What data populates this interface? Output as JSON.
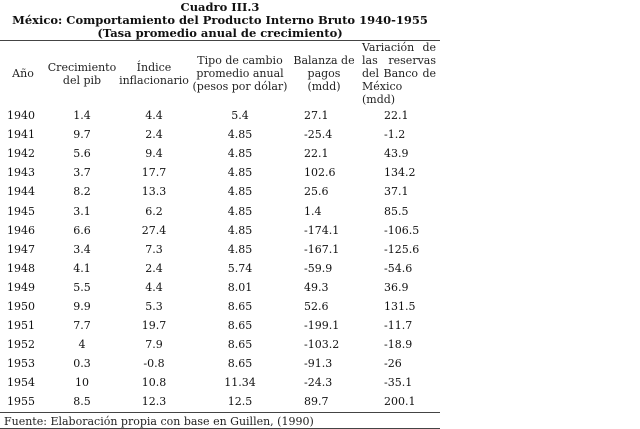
{
  "document": {
    "title_line1": "Cuadro III.3",
    "title_line2": "México: Comportamiento del Producto Interno Bruto 1940-1955",
    "title_line3": "(Tasa promedio anual de crecimiento)",
    "columns": [
      "Año",
      "Crecimiento del pib",
      "Índice inflacionario",
      "Tipo de cambio promedio anual (pesos por dólar)",
      "Balanza de pagos (mdd)",
      "Variación de las reservas del Banco de México (mdd)"
    ],
    "rows": [
      [
        "1940",
        "1.4",
        "4.4",
        "5.4",
        "27.1",
        "22.1"
      ],
      [
        "1941",
        "9.7",
        "2.4",
        "4.85",
        "-25.4",
        "-1.2"
      ],
      [
        "1942",
        "5.6",
        "9.4",
        "4.85",
        "22.1",
        "43.9"
      ],
      [
        "1943",
        "3.7",
        "17.7",
        "4.85",
        "102.6",
        "134.2"
      ],
      [
        "1944",
        "8.2",
        "13.3",
        "4.85",
        "25.6",
        "37.1"
      ],
      [
        "1945",
        "3.1",
        "6.2",
        "4.85",
        "1.4",
        "85.5"
      ],
      [
        "1946",
        "6.6",
        "27.4",
        "4.85",
        "-174.1",
        "-106.5"
      ],
      [
        "1947",
        "3.4",
        "7.3",
        "4.85",
        "-167.1",
        "-125.6"
      ],
      [
        "1948",
        "4.1",
        "2.4",
        "5.74",
        "-59.9",
        "-54.6"
      ],
      [
        "1949",
        "5.5",
        "4.4",
        "8.01",
        "49.3",
        "36.9"
      ],
      [
        "1950",
        "9.9",
        "5.3",
        "8.65",
        "52.6",
        "131.5"
      ],
      [
        "1951",
        "7.7",
        "19.7",
        "8.65",
        "-199.1",
        "-11.7"
      ],
      [
        "1952",
        "4",
        "7.9",
        "8.65",
        "-103.2",
        "-18.9"
      ],
      [
        "1953",
        "0.3",
        "-0.8",
        "8.65",
        "-91.3",
        "-26"
      ],
      [
        "1954",
        "10",
        "10.8",
        "11.34",
        "-24.3",
        "-35.1"
      ],
      [
        "1955",
        "8.5",
        "12.3",
        "12.5",
        "89.7",
        "200.1"
      ]
    ],
    "footer": "Fuente: Elaboración propia con base en Guillen, (1990)"
  }
}
